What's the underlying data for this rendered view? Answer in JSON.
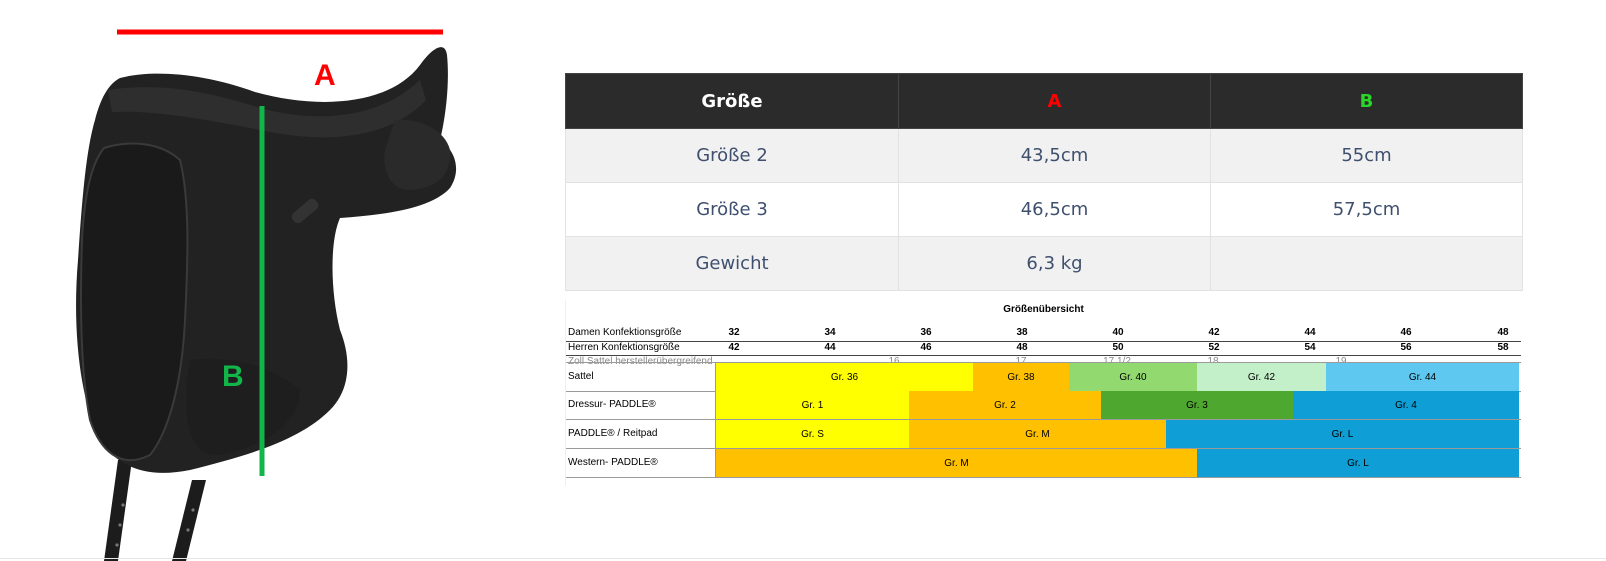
{
  "diagram": {
    "label_a": "A",
    "label_b": "B",
    "color_a": "#ff0000",
    "color_b": "#12b54a"
  },
  "spec_table": {
    "headers": [
      "Größe",
      "A",
      "B"
    ],
    "header_colors": [
      "#ffffff",
      "#ff0000",
      "#2bd62b"
    ],
    "rows": [
      [
        "Größe 2",
        "43,5cm",
        "55cm"
      ],
      [
        "Größe 3",
        "46,5cm",
        "57,5cm"
      ],
      [
        "Gewicht",
        "6,3 kg",
        ""
      ]
    ]
  },
  "size_overview": {
    "title": "Größenübersicht",
    "damen_label": "Damen Konfektionsgröße",
    "damen_sizes": [
      "32",
      "34",
      "36",
      "38",
      "40",
      "42",
      "44",
      "46",
      "48"
    ],
    "herren_label": "Herren Konfektionsgröße",
    "herren_sizes": [
      "42",
      "44",
      "46",
      "48",
      "50",
      "52",
      "54",
      "56",
      "58"
    ],
    "zoll_label": "Zoll Sattel herstellerübergreifend",
    "zoll_sizes": [
      "16",
      "17",
      "17 1/2",
      "18",
      "19"
    ],
    "bands": [
      {
        "label": "Sattel",
        "segments": [
          {
            "text": "Gr. 36",
            "color": "#ffff00"
          },
          {
            "text": "Gr. 38",
            "color": "#ffc000"
          },
          {
            "text": "Gr. 40",
            "color": "#92d96f"
          },
          {
            "text": "Gr. 42",
            "color": "#c4f0c9"
          },
          {
            "text": "Gr. 44",
            "color": "#5ec8f0"
          }
        ]
      },
      {
        "label": "Dressur- PADDLE®",
        "segments": [
          {
            "text": "Gr. 1",
            "color": "#ffff00"
          },
          {
            "text": "Gr. 2",
            "color": "#ffc000"
          },
          {
            "text": "Gr. 3",
            "color": "#4ea72e"
          },
          {
            "text": "Gr. 4",
            "color": "#0f9ed5"
          }
        ]
      },
      {
        "label": " PADDLE® / Reitpad",
        "segments": [
          {
            "text": "Gr. S",
            "color": "#ffff00"
          },
          {
            "text": "Gr. M",
            "color": "#ffc000"
          },
          {
            "text": "Gr. L",
            "color": "#0f9ed5"
          }
        ]
      },
      {
        "label": "Western- PADDLE®",
        "segments": [
          {
            "text": "Gr. M",
            "color": "#ffc000"
          },
          {
            "text": "Gr. L",
            "color": "#0f9ed5"
          }
        ]
      }
    ]
  }
}
